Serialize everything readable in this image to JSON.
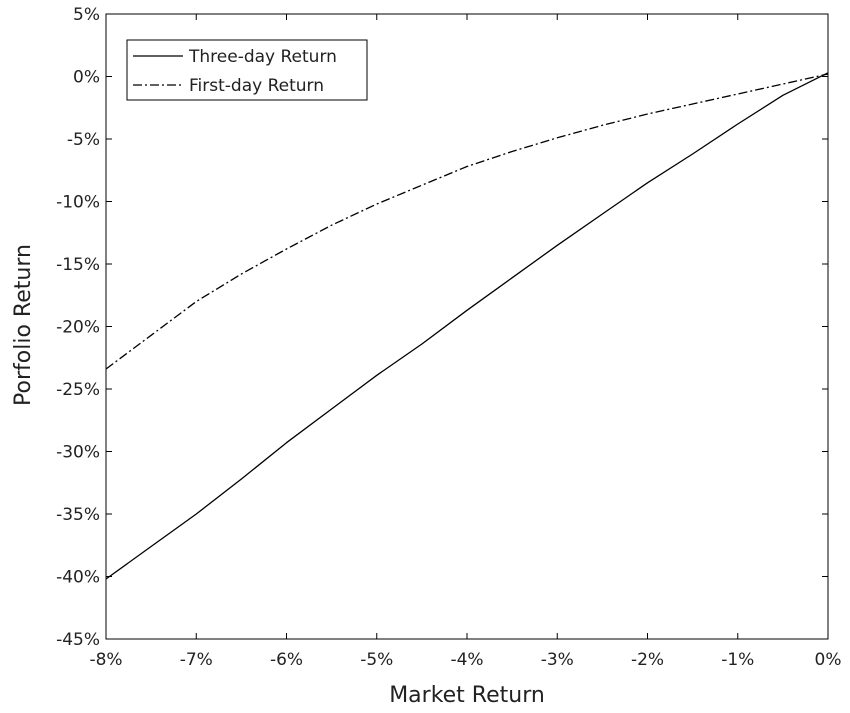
{
  "chart_data": {
    "type": "line",
    "title": "",
    "xlabel": "Market Return",
    "ylabel": "Porfolio Return",
    "xlim": [
      -8,
      0
    ],
    "ylim": [
      -45,
      5
    ],
    "x_ticks": [
      -8,
      -7,
      -6,
      -5,
      -4,
      -3,
      -2,
      -1,
      0
    ],
    "x_tick_labels": [
      "-8%",
      "-7%",
      "-6%",
      "-5%",
      "-4%",
      "-3%",
      "-2%",
      "-1%",
      "0%"
    ],
    "y_ticks": [
      5,
      0,
      -5,
      -10,
      -15,
      -20,
      -25,
      -30,
      -35,
      -40,
      -45
    ],
    "y_tick_labels": [
      "5%",
      "0%",
      "-5%",
      "-10%",
      "-15%",
      "-20%",
      "-25%",
      "-30%",
      "-35%",
      "-40%",
      "-45%"
    ],
    "grid": false,
    "legend_position": "top-left",
    "series": [
      {
        "name": "Three-day Return",
        "style": "solid",
        "color": "#000000",
        "x": [
          -8,
          -7.5,
          -7,
          -6.5,
          -6,
          -5.5,
          -5,
          -4.5,
          -4,
          -3.5,
          -3,
          -2.5,
          -2,
          -1.5,
          -1,
          -0.5,
          0
        ],
        "y": [
          -40.2,
          -37.6,
          -35.0,
          -32.2,
          -29.3,
          -26.6,
          -23.9,
          -21.4,
          -18.7,
          -16.1,
          -13.5,
          -11.0,
          -8.5,
          -6.2,
          -3.8,
          -1.5,
          0.3
        ]
      },
      {
        "name": "First-day Return",
        "style": "dash-dot",
        "color": "#000000",
        "x": [
          -8,
          -7.5,
          -7,
          -6.5,
          -6,
          -5.5,
          -5,
          -4.5,
          -4,
          -3.5,
          -3,
          -2.5,
          -2,
          -1.5,
          -1,
          -0.5,
          0
        ],
        "y": [
          -23.4,
          -20.7,
          -18.0,
          -15.8,
          -13.8,
          -11.9,
          -10.2,
          -8.7,
          -7.2,
          -6.0,
          -4.9,
          -3.9,
          -3.0,
          -2.2,
          -1.4,
          -0.6,
          0.2
        ]
      }
    ]
  }
}
